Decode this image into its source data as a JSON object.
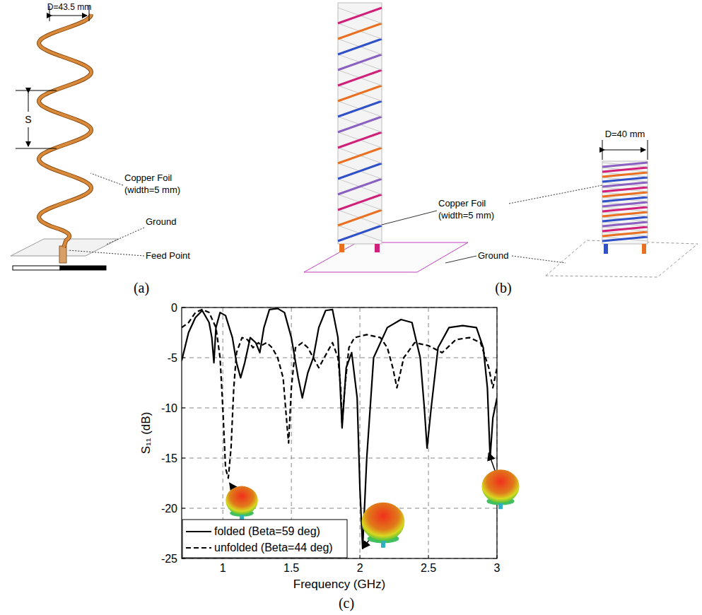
{
  "panels": {
    "a": {
      "label": "(a)",
      "diameter_label": "D=43.5 mm",
      "pitch_label": "S",
      "foil_label": [
        "Copper Foil",
        "(width=5 mm)"
      ],
      "ground_label": "Ground",
      "feed_label": "Feed Point"
    },
    "b": {
      "label": "(b)",
      "foil_label": [
        "Copper Foil",
        "(width=5 mm)"
      ],
      "diameter_label": "D=40 mm",
      "ground_label": "Ground"
    },
    "c": {
      "label": "(c)"
    }
  },
  "chart_data": {
    "type": "line",
    "xlabel": "Frequency (GHz)",
    "ylabel": "S₁₁ (dB)",
    "xlim": [
      0.7,
      3
    ],
    "ylim": [
      -25,
      0
    ],
    "xticks": [
      1,
      1.5,
      2,
      2.5,
      3
    ],
    "yticks": [
      -25,
      -20,
      -15,
      -10,
      -5,
      0
    ],
    "grid": true,
    "legend": "lower left",
    "series": [
      {
        "name": "folded (Beta=59 deg)",
        "color": "#000000",
        "line_style": "solid",
        "x": [
          0.7,
          0.75,
          0.8,
          0.85,
          0.9,
          0.92,
          0.935,
          0.95,
          0.98,
          1.02,
          1.07,
          1.1,
          1.13,
          1.16,
          1.2,
          1.24,
          1.27,
          1.3,
          1.34,
          1.4,
          1.45,
          1.5,
          1.55,
          1.58,
          1.62,
          1.66,
          1.7,
          1.75,
          1.8,
          1.84,
          1.87,
          1.9,
          1.94,
          1.98,
          2.0,
          2.02,
          2.05,
          2.1,
          2.2,
          2.3,
          2.38,
          2.44,
          2.47,
          2.49,
          2.52,
          2.57,
          2.65,
          2.75,
          2.85,
          2.9,
          2.93,
          2.95,
          2.97,
          3.0
        ],
        "values": [
          -5.3,
          -2.5,
          -1,
          -0.3,
          -1.5,
          -3,
          -5.5,
          -2,
          -0.5,
          -0.8,
          -3,
          -5.5,
          -7,
          -5.5,
          -3,
          -3.5,
          -4.5,
          -2,
          -0.2,
          -0.1,
          -0.5,
          -3,
          -7,
          -9,
          -6.5,
          -5,
          -2,
          -0.3,
          -0.2,
          -3,
          -12,
          -6,
          -4.5,
          -9,
          -18,
          -24,
          -15,
          -5,
          -2,
          -1.2,
          -1.5,
          -5,
          -10,
          -14,
          -10,
          -4,
          -2,
          -1.8,
          -2,
          -4,
          -8,
          -15,
          -11,
          -9
        ]
      },
      {
        "name": "unfolded (Beta=44 deg)",
        "color": "#000000",
        "line_style": "dashed",
        "x": [
          0.7,
          0.75,
          0.8,
          0.85,
          0.9,
          0.95,
          0.98,
          1.0,
          1.02,
          1.04,
          1.06,
          1.08,
          1.1,
          1.14,
          1.18,
          1.22,
          1.26,
          1.28,
          1.32,
          1.36,
          1.4,
          1.44,
          1.47,
          1.48,
          1.5,
          1.53,
          1.58,
          1.62,
          1.66,
          1.7,
          1.74,
          1.8,
          1.84,
          1.86,
          1.87,
          1.89,
          1.92,
          1.96,
          2.05,
          2.15,
          2.2,
          2.24,
          2.27,
          2.32,
          2.4,
          2.5,
          2.6,
          2.7,
          2.8,
          2.88,
          2.94,
          2.97,
          3.0
        ],
        "values": [
          -2,
          -1.5,
          -0.5,
          -0.2,
          -0.5,
          -2,
          -5,
          -10,
          -16,
          -17,
          -14,
          -8,
          -4.5,
          -3,
          -3.2,
          -4,
          -3.5,
          -3.8,
          -3.5,
          -4,
          -5,
          -7,
          -12,
          -13.5,
          -8,
          -4,
          -3.5,
          -4,
          -5,
          -6,
          -5,
          -3.5,
          -5,
          -8,
          -11.5,
          -8,
          -4,
          -3,
          -2.7,
          -3,
          -4,
          -6,
          -8,
          -5,
          -3.5,
          -3.8,
          -4.5,
          -3.2,
          -3,
          -3.5,
          -6,
          -8,
          -6
        ]
      }
    ]
  }
}
